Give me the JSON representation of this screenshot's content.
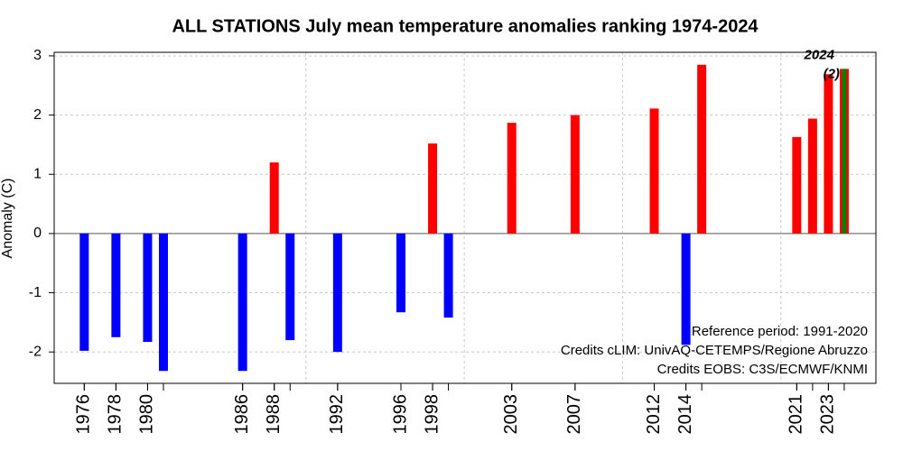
{
  "chart_data": {
    "type": "bar",
    "title": "ALL STATIONS July mean temperature anomalies ranking 1974-2024",
    "y_label": "Anomaly (C)",
    "x": [
      1976,
      1978,
      1980,
      1981,
      1986,
      1988,
      1989,
      1992,
      1996,
      1998,
      1999,
      2003,
      2007,
      2012,
      2014,
      2015,
      2021,
      2022,
      2023,
      2024
    ],
    "values": [
      -1.98,
      -1.75,
      -1.83,
      -2.32,
      -2.32,
      1.2,
      -1.8,
      -2.0,
      -1.33,
      1.52,
      -1.42,
      1.87,
      2.0,
      2.11,
      -1.88,
      2.85,
      1.63,
      1.94,
      2.69,
      2.78
    ],
    "positive_color": "#ff0000",
    "negative_color": "#0000ff",
    "highlight_index": 19,
    "highlight_color": "#008000",
    "highlight_label": [
      "2024",
      "(2)"
    ],
    "xlim": [
      1974.1,
      2026
    ],
    "xticks": [
      1976,
      1978,
      1980,
      1986,
      1988,
      1992,
      1996,
      1998,
      2003,
      2007,
      2012,
      2014,
      2021,
      2023
    ],
    "xgrid": [
      1990,
      2000,
      2010,
      2020
    ],
    "ylim": [
      -2.53,
      3.06
    ],
    "yticks": [
      -2,
      -1,
      0,
      1,
      2,
      3
    ],
    "grid": true,
    "annotations": [
      "Reference period: 1991-2020",
      "Credits cLIM: UnivAQ-CETEMPS/Regione Abruzzo",
      "Credits EOBS: C3S/ECMWF/KNMI"
    ]
  }
}
